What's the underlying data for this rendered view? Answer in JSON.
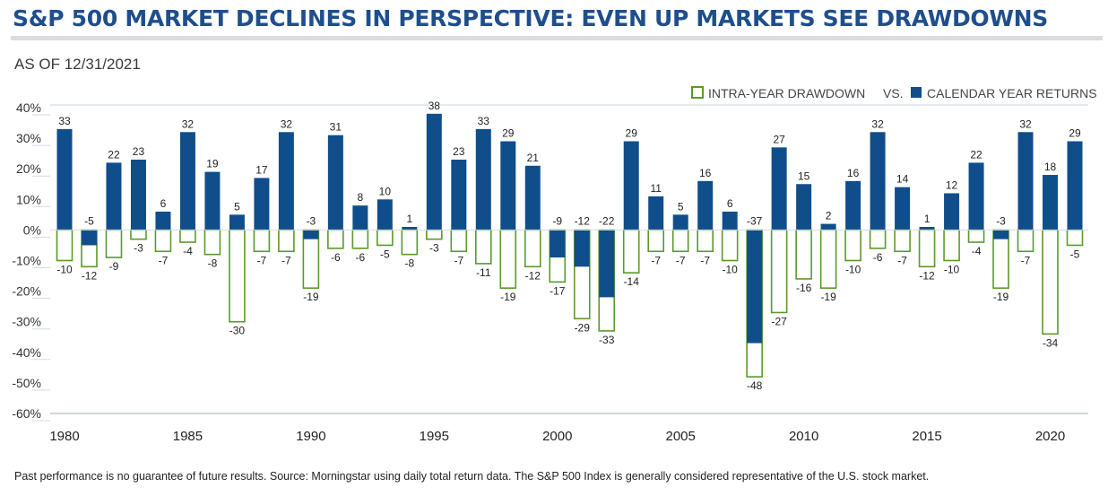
{
  "header": {
    "title": "S&P 500 MARKET DECLINES IN PERSPECTIVE: EVEN UP MARKETS SEE DRAWDOWNS",
    "subtitle": "AS OF 12/31/2021"
  },
  "footer": {
    "note": "Past performance is no guarantee of future results. Source: Morningstar using daily total return data. The S&P 500 Index is generally considered representative of the U.S. stock market."
  },
  "chart_data": {
    "type": "bar",
    "x": [
      1980,
      1981,
      1982,
      1983,
      1984,
      1985,
      1986,
      1987,
      1988,
      1989,
      1990,
      1991,
      1992,
      1993,
      1994,
      1995,
      1996,
      1997,
      1998,
      1999,
      2000,
      2001,
      2002,
      2003,
      2004,
      2005,
      2006,
      2007,
      2008,
      2009,
      2010,
      2011,
      2012,
      2013,
      2014,
      2015,
      2016,
      2017,
      2018,
      2019,
      2020,
      2021
    ],
    "x_ticks": [
      "1980",
      "1985",
      "1990",
      "1995",
      "2000",
      "2005",
      "2010",
      "2015",
      "2020"
    ],
    "series": [
      {
        "name": "INTRA-YEAR DRAWDOWN",
        "color": "#5a9a2a",
        "values": [
          -10,
          -12,
          -9,
          -3,
          -7,
          -4,
          -8,
          -30,
          -7,
          -7,
          -19,
          -6,
          -6,
          -5,
          -8,
          -3,
          -7,
          -11,
          -19,
          -12,
          -17,
          -29,
          -33,
          -14,
          -7,
          -7,
          -7,
          -10,
          -48,
          -27,
          -16,
          -19,
          -10,
          -6,
          -7,
          -12,
          -10,
          -4,
          -19,
          -7,
          -34,
          -5
        ]
      },
      {
        "name": "CALENDAR YEAR RETURNS",
        "color": "#104e8b",
        "values": [
          33,
          -5,
          22,
          23,
          6,
          32,
          19,
          5,
          17,
          32,
          -3,
          31,
          8,
          10,
          1,
          38,
          23,
          33,
          29,
          21,
          -9,
          -12,
          -22,
          29,
          11,
          5,
          16,
          6,
          -37,
          27,
          15,
          2,
          16,
          32,
          14,
          1,
          12,
          22,
          -3,
          32,
          18,
          29
        ]
      }
    ],
    "legend_separator": "VS.",
    "y_ticks": [
      "40%",
      "30%",
      "20%",
      "10%",
      "0%",
      "-10%",
      "-20%",
      "-30%",
      "-40%",
      "-50%",
      "-60%"
    ],
    "ylim": [
      -60,
      40
    ],
    "legend_position": "top-right",
    "grid": false
  }
}
